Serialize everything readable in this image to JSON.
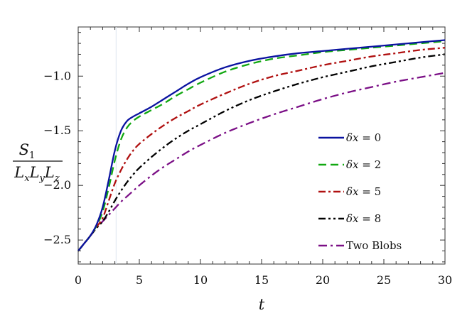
{
  "chart_data": {
    "type": "line",
    "title": "",
    "xlabel": "t",
    "ylabel": {
      "numerator": "S",
      "numerator_sub": "1",
      "denominator": "L",
      "denominator_subs": [
        "x",
        "y",
        "z"
      ]
    },
    "xlim": [
      0,
      30
    ],
    "ylim": [
      -2.72,
      -0.55
    ],
    "xticks": [
      0,
      5,
      10,
      15,
      20,
      25,
      30
    ],
    "xtick_labels": [
      "0",
      "5",
      "10",
      "15",
      "20",
      "25",
      "30"
    ],
    "yticks": [
      -2.5,
      -2.0,
      -1.5,
      -1.0
    ],
    "ytick_labels": [
      "-2.5",
      "-2.0",
      "-1.5",
      "-1.0"
    ],
    "grid": false,
    "legend_position": "right",
    "annotations": [
      {
        "type": "vertical-line",
        "x": 3.1,
        "color": "#dde6ef"
      }
    ],
    "series": [
      {
        "name": "δx = 0",
        "label_main": "δx",
        "label_value": " = 0",
        "color": "#0a12a0",
        "dash": "",
        "x": [
          0,
          0.5,
          1,
          1.5,
          2,
          2.5,
          3,
          3.5,
          4,
          4.5,
          5,
          6,
          7,
          8,
          9,
          10,
          12,
          14,
          16,
          18,
          20,
          22,
          24,
          26,
          28,
          30
        ],
        "y": [
          -2.6,
          -2.53,
          -2.46,
          -2.36,
          -2.2,
          -1.95,
          -1.68,
          -1.5,
          -1.41,
          -1.37,
          -1.34,
          -1.28,
          -1.21,
          -1.14,
          -1.07,
          -1.01,
          -0.92,
          -0.86,
          -0.82,
          -0.79,
          -0.77,
          -0.75,
          -0.73,
          -0.71,
          -0.69,
          -0.67
        ]
      },
      {
        "name": "δx = 2",
        "label_main": "δx",
        "label_value": " = 2",
        "color": "#11a811",
        "dash": "11,6",
        "x": [
          0,
          0.5,
          1,
          1.5,
          2,
          2.5,
          3,
          3.5,
          4,
          4.5,
          5,
          6,
          7,
          8,
          9,
          10,
          12,
          14,
          16,
          18,
          20,
          22,
          24,
          26,
          28,
          30
        ],
        "y": [
          -2.6,
          -2.53,
          -2.46,
          -2.37,
          -2.24,
          -2.02,
          -1.77,
          -1.58,
          -1.47,
          -1.41,
          -1.37,
          -1.31,
          -1.25,
          -1.18,
          -1.12,
          -1.06,
          -0.96,
          -0.89,
          -0.84,
          -0.81,
          -0.78,
          -0.76,
          -0.74,
          -0.72,
          -0.7,
          -0.68
        ]
      },
      {
        "name": "δx = 5",
        "label_main": "δx",
        "label_value": " = 5",
        "color": "#b01010",
        "dash": "10,4,3,4",
        "x": [
          0,
          0.5,
          1,
          1.5,
          2,
          2.5,
          3,
          3.5,
          4,
          4.5,
          5,
          6,
          7,
          8,
          9,
          10,
          12,
          14,
          16,
          18,
          20,
          22,
          24,
          26,
          28,
          30
        ],
        "y": [
          -2.6,
          -2.53,
          -2.46,
          -2.38,
          -2.3,
          -2.14,
          -1.98,
          -1.86,
          -1.76,
          -1.68,
          -1.62,
          -1.53,
          -1.45,
          -1.38,
          -1.32,
          -1.26,
          -1.16,
          -1.07,
          -1.0,
          -0.95,
          -0.9,
          -0.86,
          -0.82,
          -0.79,
          -0.76,
          -0.74
        ]
      },
      {
        "name": "δx = 8",
        "label_main": "δx",
        "label_value": " = 8",
        "color": "#000000",
        "dash": "10,4,3,4,3,4",
        "x": [
          0,
          0.5,
          1,
          1.5,
          2,
          2.5,
          3,
          3.5,
          4,
          4.5,
          5,
          6,
          7,
          8,
          9,
          10,
          12,
          14,
          16,
          18,
          20,
          22,
          24,
          26,
          28,
          30
        ],
        "y": [
          -2.6,
          -2.53,
          -2.46,
          -2.39,
          -2.33,
          -2.24,
          -2.14,
          -2.05,
          -1.97,
          -1.9,
          -1.84,
          -1.74,
          -1.65,
          -1.57,
          -1.5,
          -1.44,
          -1.32,
          -1.22,
          -1.14,
          -1.07,
          -1.01,
          -0.96,
          -0.91,
          -0.87,
          -0.83,
          -0.8
        ]
      },
      {
        "name": "Two Blobs",
        "label_main": "Two Blobs",
        "label_value": "",
        "color": "#7b0f86",
        "dash": "12,5,3,5",
        "x": [
          0,
          0.5,
          1,
          1.5,
          2,
          2.5,
          3,
          3.5,
          4,
          4.5,
          5,
          6,
          7,
          8,
          9,
          10,
          12,
          14,
          16,
          18,
          20,
          22,
          24,
          26,
          28,
          30
        ],
        "y": [
          -2.6,
          -2.53,
          -2.46,
          -2.39,
          -2.33,
          -2.27,
          -2.21,
          -2.15,
          -2.1,
          -2.05,
          -2.0,
          -1.91,
          -1.83,
          -1.76,
          -1.69,
          -1.63,
          -1.52,
          -1.43,
          -1.35,
          -1.28,
          -1.21,
          -1.15,
          -1.1,
          -1.05,
          -1.01,
          -0.97
        ]
      }
    ]
  }
}
